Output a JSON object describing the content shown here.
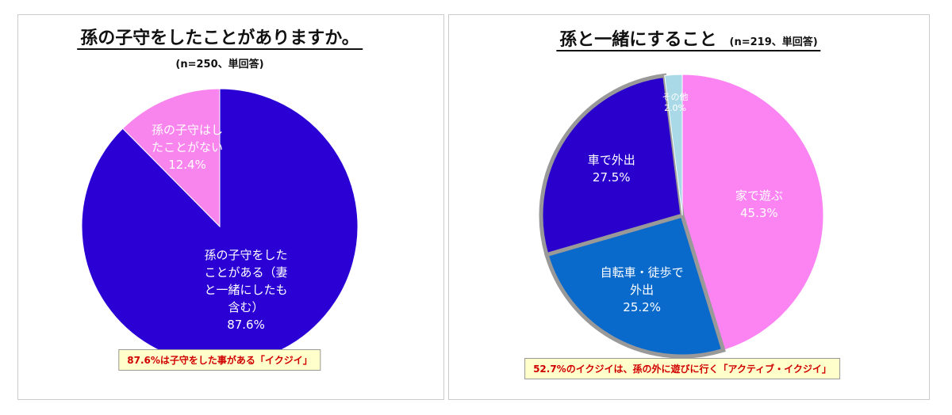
{
  "chart_data": [
    {
      "type": "pie",
      "title": "孫の子守をしたことがありますか。",
      "subtitle": "(n=250、単回答)",
      "categories": [
        "孫の子守をしたことがある（妻と一緒にしたも含む）",
        "孫の子守はしたことがない"
      ],
      "values": [
        87.6,
        12.4
      ],
      "value_labels": [
        "87.6%",
        "12.4%"
      ],
      "colors": [
        "#2a00d4",
        "#f884ee"
      ],
      "annotation": "87.6%は子守をした事がある「イクジイ」"
    },
    {
      "type": "pie",
      "title": "孫と一緒にすること",
      "subtitle": "(n=219、単回答)",
      "categories": [
        "家で遊ぶ",
        "自転車・徒歩で外出",
        "車で外出",
        "その他"
      ],
      "values": [
        45.3,
        25.2,
        27.5,
        2.0
      ],
      "value_labels": [
        "45.3%",
        "25.2%",
        "27.5%",
        "2.0%"
      ],
      "colors": [
        "#fb84f2",
        "#0a6acb",
        "#2a00cc",
        "#a9d9e6"
      ],
      "annotation": "52.7%のイクジイは、孫の外に遊びに行く「アクティブ・イクジイ」"
    }
  ]
}
